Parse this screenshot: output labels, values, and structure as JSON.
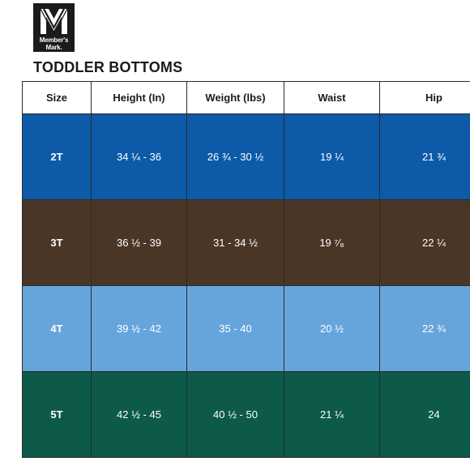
{
  "brand": {
    "line1": "Member's",
    "line2": "Mark."
  },
  "title": "TODDLER BOTTOMS",
  "table": {
    "headers": [
      "Size",
      "Height (In)",
      "Weight (lbs)",
      "Waist",
      "Hip"
    ],
    "rows": [
      {
        "color": "#0c5aa8",
        "cells": [
          "2T",
          "34 ¼ - 36",
          "26 ¾ - 30 ½",
          "19 ¼",
          "21 ¾"
        ]
      },
      {
        "color": "#4a3627",
        "cells": [
          "3T",
          "36 ½ - 39",
          "31 - 34 ½",
          "19 ⁷⁄₈",
          "22 ¼"
        ]
      },
      {
        "color": "#66a5dc",
        "cells": [
          "4T",
          "39 ½ - 42",
          "35 - 40",
          "20 ½",
          "22 ¾"
        ]
      },
      {
        "color": "#0d5a4a",
        "cells": [
          "5T",
          "42 ½ - 45",
          "40 ½ - 50",
          "21 ¼",
          "24"
        ]
      }
    ]
  }
}
